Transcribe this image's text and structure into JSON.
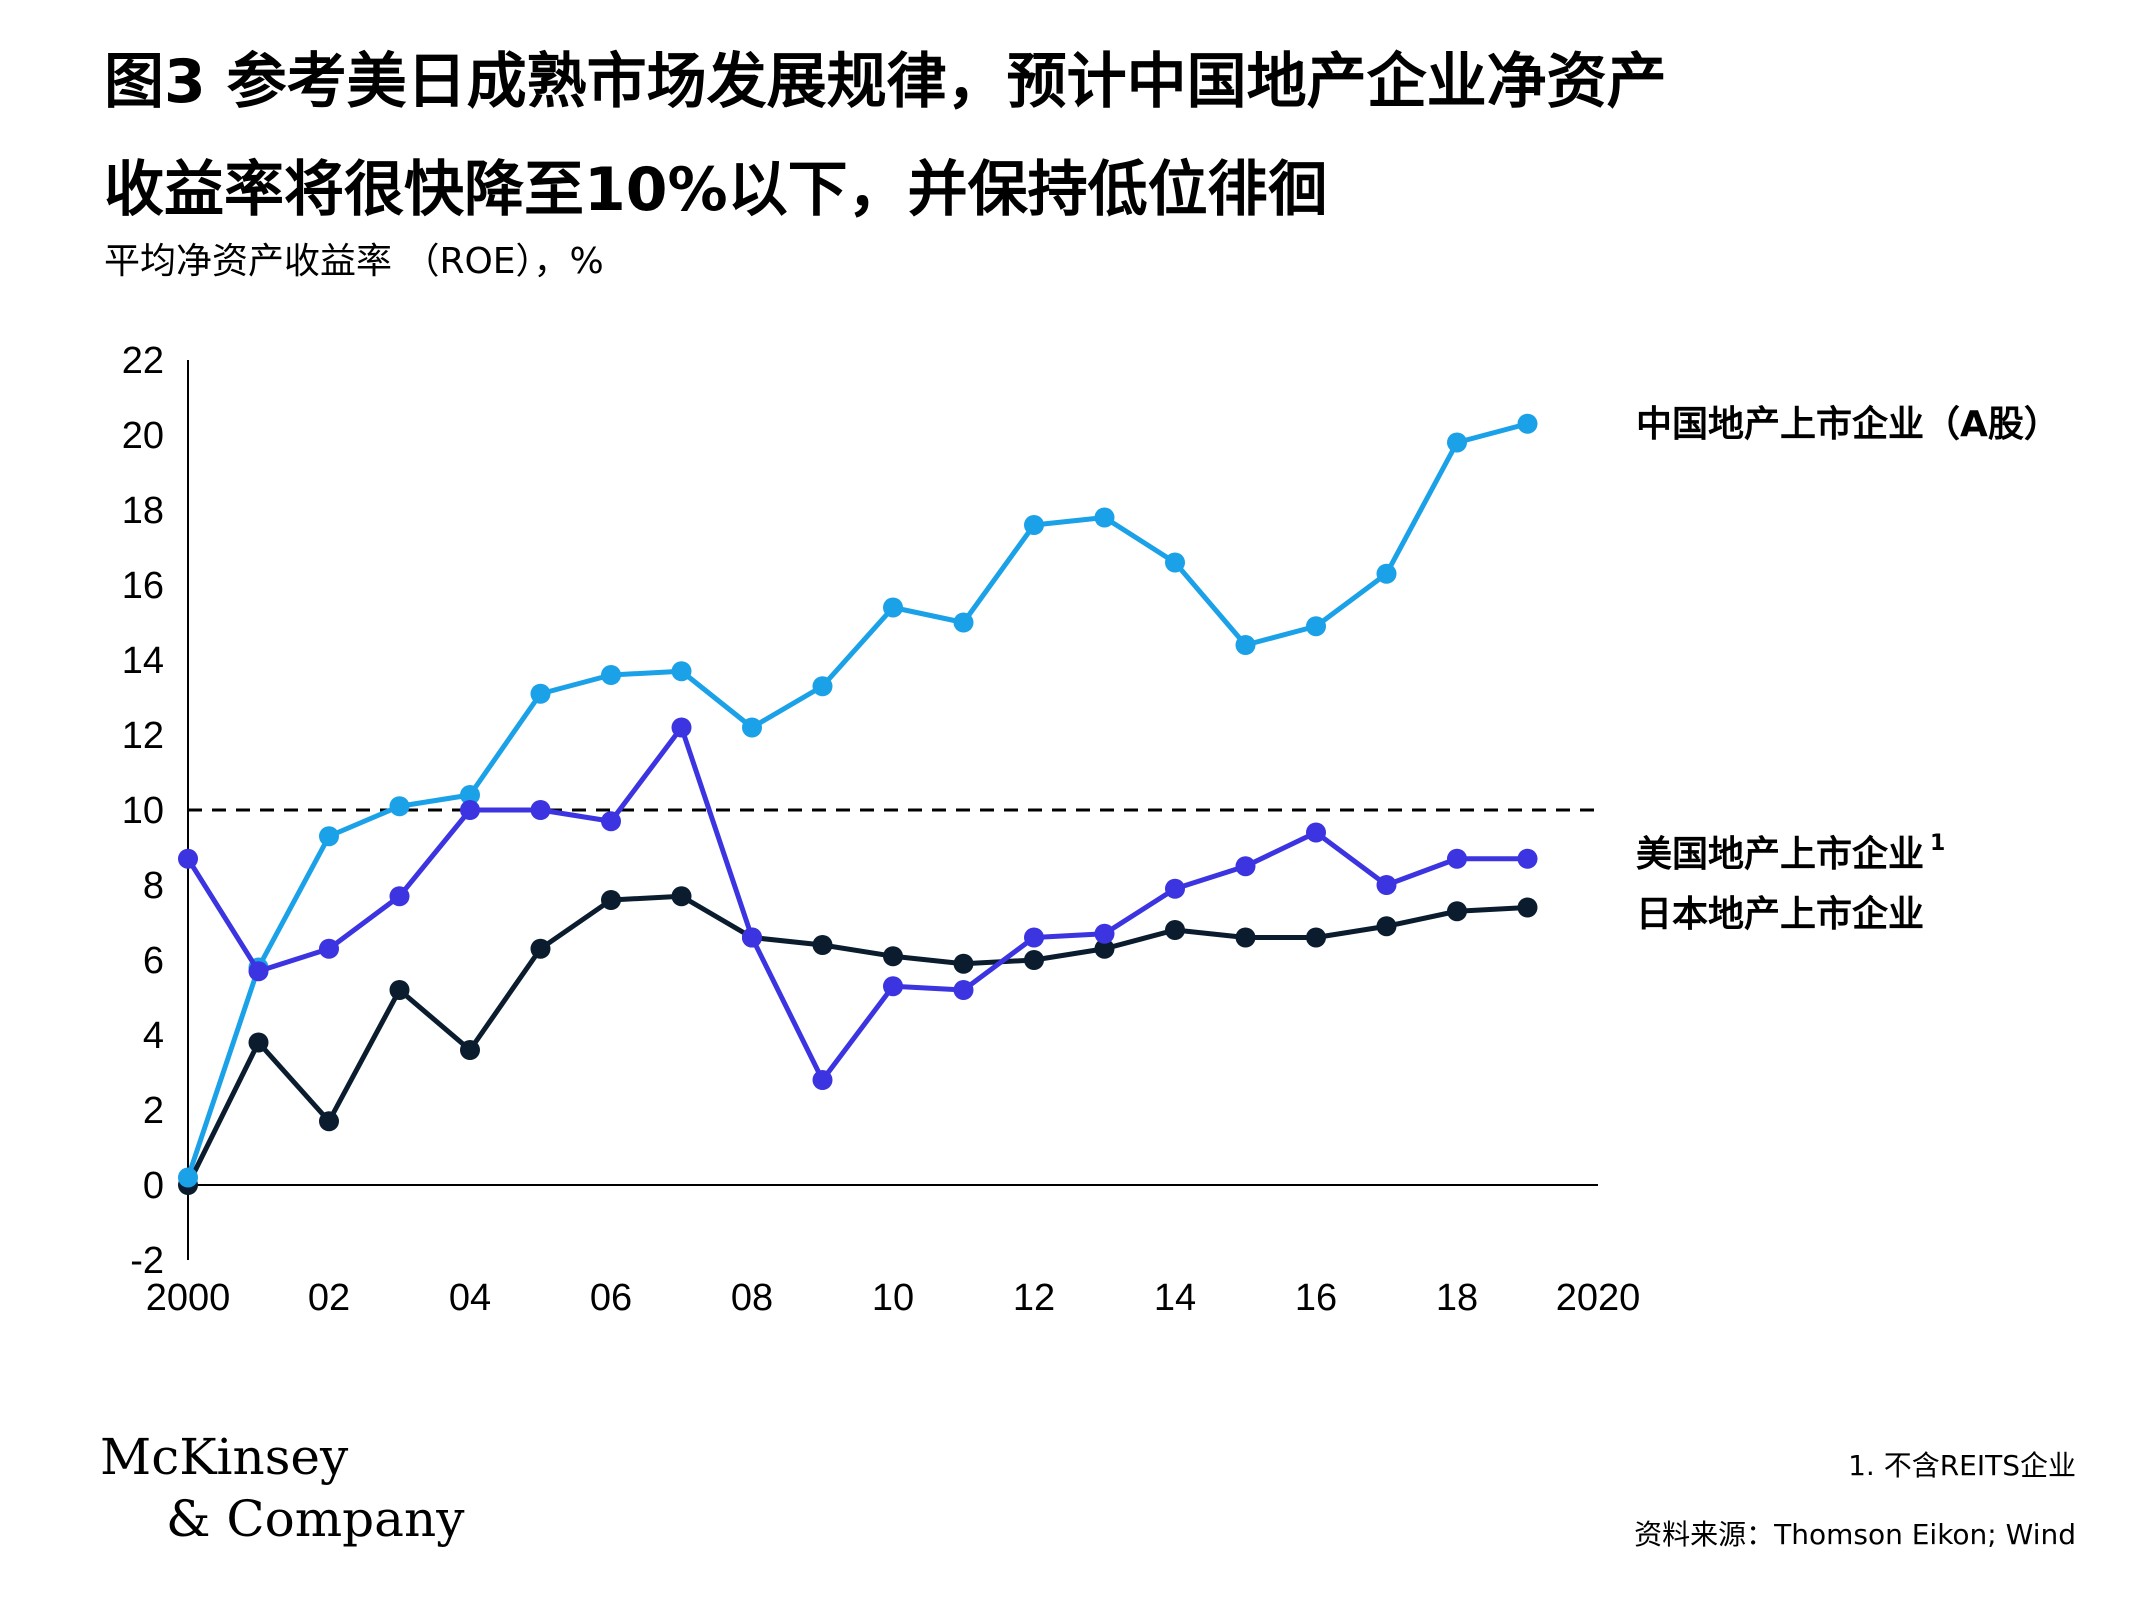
{
  "title": {
    "line1": "图3 参考美日成熟市场发展规律，预计中国地产企业净资产",
    "line2": "收益率将很快降至10%以下，并保持低位徘徊"
  },
  "subtitle": "平均净资产收益率 （ROE），%",
  "footnote": "1. 不含REITS企业",
  "source": "资料来源：Thomson Eikon; Wind",
  "logo": {
    "line1": "McKinsey",
    "line2": "& Company"
  },
  "colors": {
    "china": "#1ba1e8",
    "us": "#3b34e0",
    "japan": "#0a1c2e",
    "axis": "#000000"
  },
  "chart_data": {
    "type": "line",
    "x": [
      2000,
      2001,
      2002,
      2003,
      2004,
      2005,
      2006,
      2007,
      2008,
      2009,
      2010,
      2011,
      2012,
      2013,
      2014,
      2015,
      2016,
      2017,
      2018,
      2019
    ],
    "xlim": [
      2000,
      2020
    ],
    "x_ticks": [
      2000,
      2002,
      2004,
      2006,
      2008,
      2010,
      2012,
      2014,
      2016,
      2018,
      2020
    ],
    "x_tick_labels": [
      "2000",
      "02",
      "04",
      "06",
      "08",
      "10",
      "12",
      "14",
      "16",
      "18",
      "2020"
    ],
    "ylim": [
      -2,
      22
    ],
    "y_ticks": [
      -2,
      0,
      2,
      4,
      6,
      8,
      10,
      12,
      14,
      16,
      18,
      20,
      22
    ],
    "y_tick_labels": [
      "-2",
      "0",
      "2",
      "4",
      "6",
      "8",
      "10",
      "12",
      "14",
      "16",
      "18",
      "20",
      "22"
    ],
    "reference_line": {
      "y": 10,
      "style": "dashed"
    },
    "grid": false,
    "series": [
      {
        "name": "中国地产上市企业（A股）",
        "color": "#1ba1e8",
        "values": [
          0.2,
          5.8,
          9.3,
          10.1,
          10.4,
          13.1,
          13.6,
          13.7,
          12.2,
          13.3,
          15.4,
          15.0,
          17.6,
          17.8,
          16.6,
          14.4,
          14.9,
          16.3,
          19.8,
          20.3
        ]
      },
      {
        "name": "美国地产上市企业",
        "superscript": "1",
        "color": "#3b34e0",
        "values": [
          8.7,
          5.7,
          6.3,
          7.7,
          10.0,
          10.0,
          9.7,
          12.2,
          6.6,
          2.8,
          5.3,
          5.2,
          6.6,
          6.7,
          7.9,
          8.5,
          9.4,
          8.0,
          8.7,
          8.7
        ]
      },
      {
        "name": "日本地产上市企业",
        "color": "#0a1c2e",
        "values": [
          0.0,
          3.8,
          1.7,
          5.2,
          3.6,
          6.3,
          7.6,
          7.7,
          6.6,
          6.4,
          6.1,
          5.9,
          6.0,
          6.3,
          6.8,
          6.6,
          6.6,
          6.9,
          7.3,
          7.4
        ]
      }
    ]
  }
}
